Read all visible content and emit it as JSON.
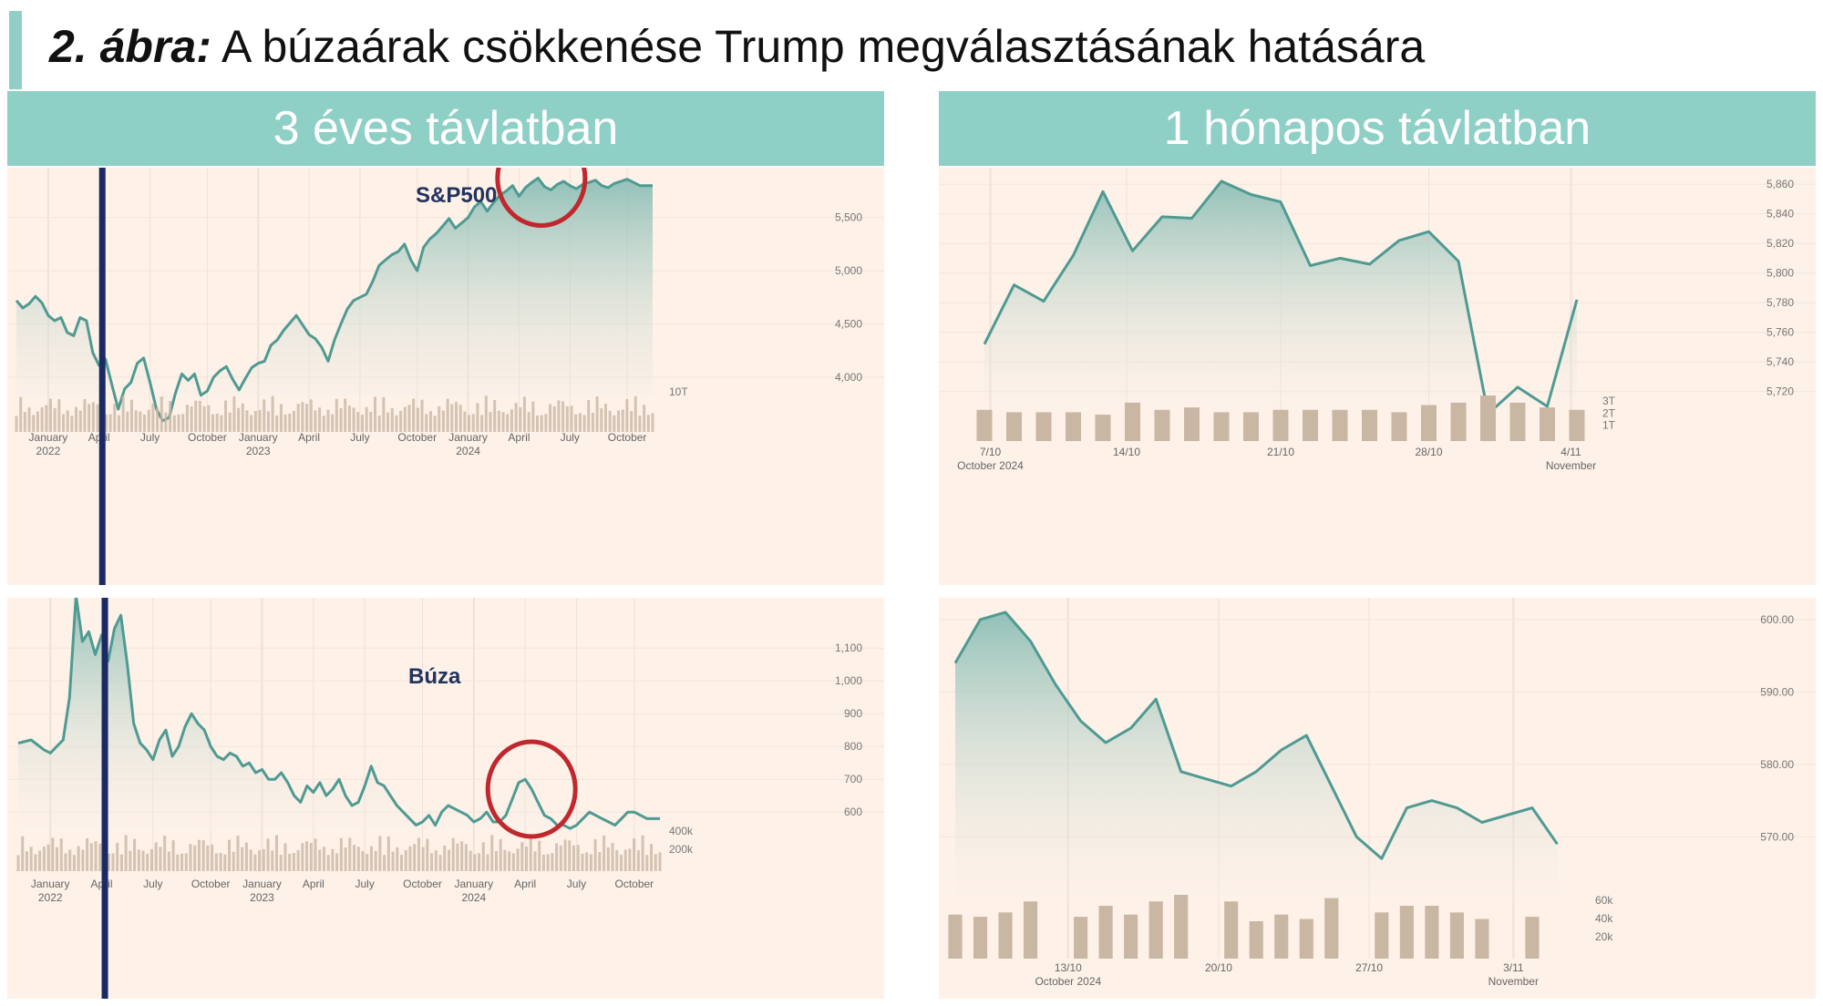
{
  "figure": {
    "number": "2. ábra:",
    "title": "A búzaárak csökkenése Trump megválasztásának hatására"
  },
  "panels": {
    "left": {
      "header": "3 éves távlatban"
    },
    "right": {
      "header": "1 hónapos távlatban"
    }
  },
  "colors": {
    "line": "#4f9a92",
    "area_top": "#7fb9b0",
    "background": "#fdf1e8",
    "header": "#8ecfc6",
    "volume": "#c9b7a4",
    "marker": "#1b2a63",
    "circle": "#c0282d"
  },
  "chart_data": [
    {
      "id": "sp500_3y",
      "type": "area",
      "series_label": "S&P500",
      "ylim": [
        3400,
        5900
      ],
      "yticks": [
        4000,
        4500,
        5000,
        5500
      ],
      "ytick_labels": [
        "4,000",
        "4,500",
        "5,000",
        "5,500"
      ],
      "volume_label": "10T",
      "xtick_labels": [
        {
          "t": 0.05,
          "label": "January",
          "sub": "2022"
        },
        {
          "t": 0.13,
          "label": "April"
        },
        {
          "t": 0.21,
          "label": "July"
        },
        {
          "t": 0.3,
          "label": "October"
        },
        {
          "t": 0.38,
          "label": "January",
          "sub": "2023"
        },
        {
          "t": 0.46,
          "label": "April"
        },
        {
          "t": 0.54,
          "label": "July"
        },
        {
          "t": 0.63,
          "label": "October"
        },
        {
          "t": 0.71,
          "label": "January",
          "sub": "2024"
        },
        {
          "t": 0.79,
          "label": "April"
        },
        {
          "t": 0.87,
          "label": "July"
        },
        {
          "t": 0.96,
          "label": "October"
        }
      ],
      "x": [
        0,
        0.01,
        0.02,
        0.03,
        0.04,
        0.05,
        0.06,
        0.07,
        0.08,
        0.09,
        0.1,
        0.11,
        0.12,
        0.13,
        0.14,
        0.15,
        0.16,
        0.17,
        0.18,
        0.19,
        0.2,
        0.21,
        0.22,
        0.23,
        0.24,
        0.25,
        0.26,
        0.27,
        0.28,
        0.29,
        0.3,
        0.31,
        0.32,
        0.33,
        0.34,
        0.35,
        0.36,
        0.37,
        0.38,
        0.39,
        0.4,
        0.41,
        0.42,
        0.43,
        0.44,
        0.45,
        0.46,
        0.47,
        0.48,
        0.49,
        0.5,
        0.51,
        0.52,
        0.53,
        0.54,
        0.55,
        0.56,
        0.57,
        0.58,
        0.59,
        0.6,
        0.61,
        0.62,
        0.63,
        0.64,
        0.65,
        0.66,
        0.67,
        0.68,
        0.69,
        0.7,
        0.71,
        0.72,
        0.73,
        0.74,
        0.75,
        0.76,
        0.77,
        0.78,
        0.79,
        0.8,
        0.81,
        0.82,
        0.83,
        0.84,
        0.85,
        0.86,
        0.87,
        0.88,
        0.89,
        0.9,
        0.91,
        0.92,
        0.93,
        0.94,
        0.95,
        0.96,
        0.97,
        0.98,
        1.0
      ],
      "values": [
        4720,
        4650,
        4690,
        4760,
        4700,
        4580,
        4530,
        4560,
        4420,
        4390,
        4560,
        4530,
        4230,
        4110,
        4170,
        3930,
        3700,
        3890,
        3950,
        4130,
        4180,
        3950,
        3700,
        3590,
        3620,
        3850,
        4030,
        3970,
        4030,
        3830,
        3870,
        4000,
        4060,
        4100,
        3980,
        3880,
        3990,
        4090,
        4130,
        4150,
        4300,
        4350,
        4440,
        4510,
        4580,
        4490,
        4400,
        4360,
        4280,
        4150,
        4350,
        4500,
        4640,
        4720,
        4750,
        4780,
        4900,
        5050,
        5100,
        5150,
        5180,
        5250,
        5100,
        5000,
        5220,
        5300,
        5350,
        5420,
        5490,
        5400,
        5450,
        5500,
        5600,
        5650,
        5560,
        5640,
        5710,
        5750,
        5800,
        5700,
        5780,
        5830,
        5870,
        5790,
        5760,
        5810,
        5840,
        5800,
        5770,
        5810,
        5830,
        5850,
        5800,
        5780,
        5820,
        5840,
        5860,
        5830,
        5800,
        5800
      ],
      "marker_vertical_t": 0.135,
      "highlight_t": 0.825
    },
    {
      "id": "wheat_3y",
      "type": "area",
      "series_label": "Búza",
      "ylim": [
        420,
        1220
      ],
      "yticks": [
        600,
        700,
        800,
        900,
        1000,
        1100
      ],
      "ytick_labels": [
        "600",
        "700",
        "800",
        "900",
        "1,000",
        "1,100"
      ],
      "volume_labels": [
        "400k",
        "200k"
      ],
      "xtick_labels": [
        {
          "t": 0.05,
          "label": "January",
          "sub": "2022"
        },
        {
          "t": 0.13,
          "label": "April"
        },
        {
          "t": 0.21,
          "label": "July"
        },
        {
          "t": 0.3,
          "label": "October"
        },
        {
          "t": 0.38,
          "label": "January",
          "sub": "2023"
        },
        {
          "t": 0.46,
          "label": "April"
        },
        {
          "t": 0.54,
          "label": "July"
        },
        {
          "t": 0.63,
          "label": "October"
        },
        {
          "t": 0.71,
          "label": "January",
          "sub": "2024"
        },
        {
          "t": 0.79,
          "label": "April"
        },
        {
          "t": 0.87,
          "label": "July"
        },
        {
          "t": 0.96,
          "label": "October"
        }
      ],
      "x": [
        0,
        0.02,
        0.04,
        0.05,
        0.06,
        0.07,
        0.08,
        0.09,
        0.1,
        0.11,
        0.12,
        0.13,
        0.14,
        0.15,
        0.16,
        0.17,
        0.18,
        0.19,
        0.2,
        0.21,
        0.22,
        0.23,
        0.24,
        0.25,
        0.26,
        0.27,
        0.28,
        0.29,
        0.3,
        0.31,
        0.32,
        0.33,
        0.34,
        0.35,
        0.36,
        0.37,
        0.38,
        0.39,
        0.4,
        0.41,
        0.42,
        0.43,
        0.44,
        0.45,
        0.46,
        0.47,
        0.48,
        0.49,
        0.5,
        0.51,
        0.52,
        0.53,
        0.54,
        0.55,
        0.56,
        0.57,
        0.58,
        0.59,
        0.6,
        0.61,
        0.62,
        0.63,
        0.64,
        0.65,
        0.66,
        0.67,
        0.68,
        0.69,
        0.7,
        0.71,
        0.72,
        0.73,
        0.74,
        0.75,
        0.76,
        0.77,
        0.78,
        0.79,
        0.8,
        0.81,
        0.82,
        0.83,
        0.84,
        0.85,
        0.86,
        0.87,
        0.88,
        0.89,
        0.9,
        0.91,
        0.92,
        0.93,
        0.94,
        0.95,
        0.96,
        0.97,
        0.98,
        1.0
      ],
      "values": [
        810,
        820,
        790,
        780,
        800,
        820,
        950,
        1260,
        1120,
        1150,
        1080,
        1140,
        1060,
        1160,
        1200,
        1050,
        870,
        810,
        790,
        760,
        820,
        850,
        770,
        800,
        860,
        900,
        870,
        850,
        800,
        770,
        760,
        780,
        770,
        740,
        750,
        720,
        730,
        700,
        700,
        720,
        690,
        650,
        630,
        680,
        660,
        690,
        650,
        670,
        700,
        650,
        620,
        630,
        680,
        740,
        690,
        680,
        650,
        620,
        600,
        580,
        560,
        570,
        590,
        560,
        600,
        620,
        610,
        600,
        590,
        570,
        580,
        600,
        570,
        570,
        590,
        640,
        690,
        700,
        670,
        630,
        590,
        580,
        560,
        560,
        550,
        560,
        580,
        600,
        590,
        580,
        570,
        560,
        580,
        600,
        600,
        590,
        580,
        580
      ],
      "marker_vertical_t": 0.135,
      "highlight_t": 0.8
    },
    {
      "id": "sp500_1m",
      "type": "area",
      "ylim": [
        5710,
        5865
      ],
      "yticks": [
        5720,
        5740,
        5760,
        5780,
        5800,
        5820,
        5840,
        5860
      ],
      "ytick_labels": [
        "5,720",
        "5,740",
        "5,760",
        "5,780",
        "5,800",
        "5,820",
        "5,840",
        "5,860"
      ],
      "volume_labels": [
        "3T",
        "2T",
        "1T"
      ],
      "xtick_labels": [
        {
          "t": 0.01,
          "label": "7/10",
          "sub": "October 2024"
        },
        {
          "t": 0.24,
          "label": "14/10"
        },
        {
          "t": 0.5,
          "label": "21/10"
        },
        {
          "t": 0.75,
          "label": "28/10"
        },
        {
          "t": 0.99,
          "label": "4/11",
          "sub": "November"
        }
      ],
      "x": [
        0.0,
        0.05,
        0.1,
        0.15,
        0.2,
        0.25,
        0.3,
        0.35,
        0.4,
        0.45,
        0.5,
        0.55,
        0.6,
        0.65,
        0.7,
        0.75,
        0.8,
        0.85,
        0.9,
        0.95,
        1.0
      ],
      "values": [
        5752,
        5792,
        5781,
        5812,
        5855,
        5815,
        5838,
        5837,
        5862,
        5853,
        5848,
        5805,
        5810,
        5806,
        5822,
        5828,
        5808,
        5705,
        5723,
        5710,
        5782
      ],
      "volumes": [
        1.3,
        1.2,
        1.2,
        1.2,
        1.1,
        1.6,
        1.3,
        1.4,
        1.2,
        1.2,
        1.3,
        1.3,
        1.3,
        1.3,
        1.2,
        1.5,
        1.6,
        1.9,
        1.6,
        1.4,
        1.3
      ]
    },
    {
      "id": "wheat_1m",
      "type": "area",
      "ylim": [
        563,
        602
      ],
      "yticks": [
        570,
        580,
        590,
        600
      ],
      "ytick_labels": [
        "570.00",
        "580.00",
        "590.00",
        "600.00"
      ],
      "volume_labels": [
        "60k",
        "40k",
        "20k"
      ],
      "xtick_labels": [
        {
          "t": 0.18,
          "label": "13/10",
          "sub": "October 2024"
        },
        {
          "t": 0.42,
          "label": "20/10"
        },
        {
          "t": 0.66,
          "label": "27/10"
        },
        {
          "t": 0.89,
          "label": "3/11",
          "sub": "November"
        }
      ],
      "x": [
        0.0,
        0.04,
        0.08,
        0.12,
        0.16,
        0.2,
        0.24,
        0.28,
        0.32,
        0.36,
        0.4,
        0.44,
        0.48,
        0.52,
        0.56,
        0.6,
        0.64,
        0.68,
        0.72,
        0.76,
        0.8,
        0.84,
        0.88,
        0.92,
        0.96
      ],
      "values": [
        594,
        600,
        601,
        597,
        591,
        586,
        583,
        585,
        589,
        579,
        578,
        577,
        579,
        582,
        584,
        577,
        570,
        567,
        574,
        575,
        574,
        572,
        573,
        574,
        569
      ],
      "volumes": [
        40,
        38,
        42,
        52,
        0,
        38,
        48,
        40,
        52,
        58,
        0,
        52,
        34,
        40,
        36,
        55,
        0,
        42,
        48,
        48,
        42,
        36,
        0,
        38,
        0
      ]
    }
  ]
}
